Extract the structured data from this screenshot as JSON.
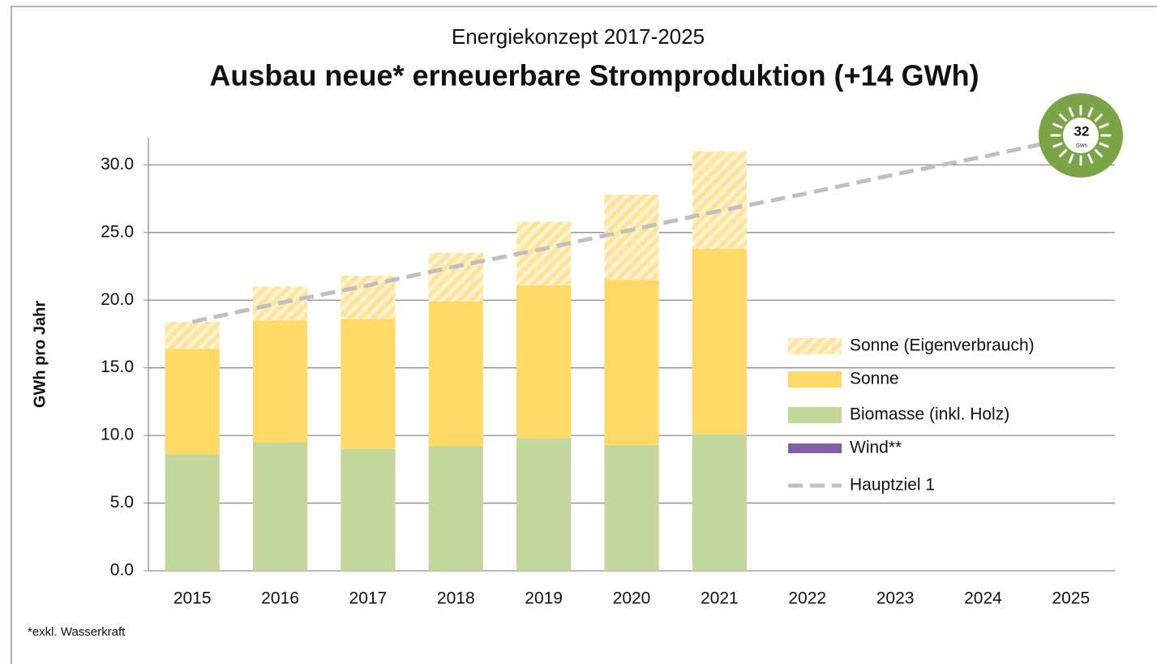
{
  "chart_data": {
    "type": "bar",
    "stacked": true,
    "subtitle": "Energiekonzept 2017-2025",
    "title": "Ausbau neue* erneuerbare Stromproduktion (+14 GWh)",
    "y_label": "GWh pro Jahr",
    "footnote": "*exkl. Wasserkraft",
    "badge": {
      "value": "32",
      "unit": "GWh"
    },
    "categories": [
      "2015",
      "2016",
      "2017",
      "2018",
      "2019",
      "2020",
      "2021",
      "2022",
      "2023",
      "2024",
      "2025"
    ],
    "series": [
      {
        "name": "Sonne (Eigenverbrauch)",
        "type": "bar",
        "hatch": true,
        "color": "#fde49a",
        "values": [
          2.0,
          2.5,
          3.2,
          3.6,
          4.7,
          6.3,
          7.2,
          null,
          null,
          null,
          null
        ]
      },
      {
        "name": "Sonne",
        "type": "bar",
        "color": "#ffd966",
        "values": [
          7.8,
          9.0,
          9.6,
          10.7,
          11.3,
          12.2,
          13.7,
          null,
          null,
          null,
          null
        ]
      },
      {
        "name": "Biomasse (inkl. Holz)",
        "type": "bar",
        "color": "#c4d79b",
        "values": [
          8.6,
          9.5,
          9.0,
          9.2,
          9.8,
          9.3,
          10.1,
          null,
          null,
          null,
          null
        ]
      },
      {
        "name": "Wind**",
        "type": "bar",
        "color": "#7f60a8",
        "values": [
          0,
          0,
          0,
          0,
          0,
          0,
          0,
          null,
          null,
          null,
          null
        ]
      },
      {
        "name": "Hauptziel 1",
        "type": "line",
        "dashed": true,
        "color": "#bfbfbf",
        "values": [
          18.4,
          19.8,
          21.1,
          22.5,
          23.8,
          25.2,
          26.6,
          27.9,
          29.3,
          30.6,
          32.0
        ]
      }
    ],
    "ylim": [
      0,
      32
    ],
    "yticks": [
      {
        "value": 0,
        "label": "0.0"
      },
      {
        "value": 5,
        "label": "5.0"
      },
      {
        "value": 10,
        "label": "10.0"
      },
      {
        "value": 15,
        "label": "15.0"
      },
      {
        "value": 20,
        "label": "20.0"
      },
      {
        "value": 25,
        "label": "25.0"
      },
      {
        "value": 30,
        "label": "30.0"
      }
    ],
    "grid": true,
    "legend": "right"
  }
}
